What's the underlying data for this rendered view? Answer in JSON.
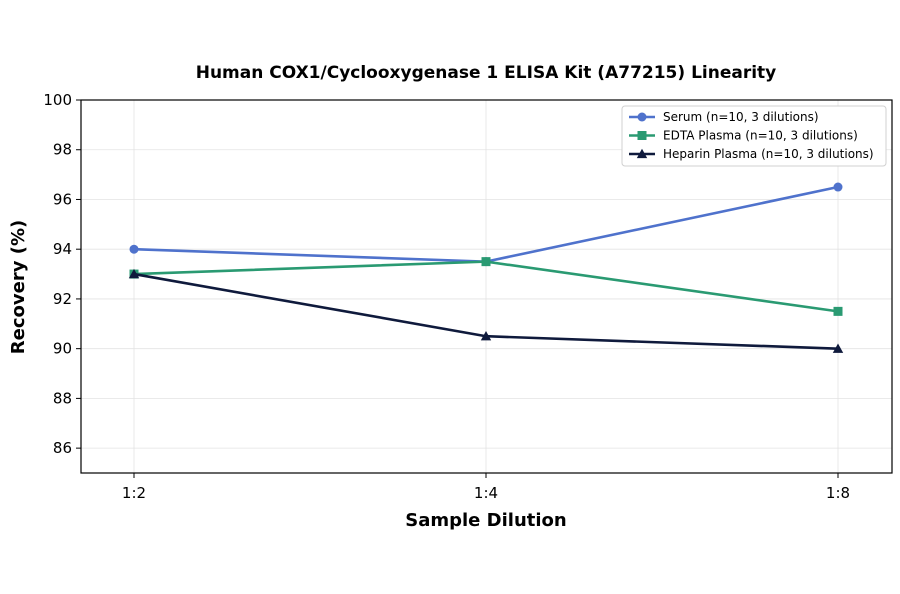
{
  "chart_data": {
    "type": "line",
    "title": "Human COX1/Cyclooxygenase 1 ELISA Kit (A77215) Linearity",
    "xlabel": "Sample Dilution",
    "ylabel": "Recovery (%)",
    "categories": [
      "1:2",
      "1:4",
      "1:8"
    ],
    "ylim": [
      85,
      100
    ],
    "yticks": [
      86,
      88,
      90,
      92,
      94,
      96,
      98,
      100
    ],
    "grid": true,
    "legend_position": "top-right",
    "series": [
      {
        "name": "Serum (n=10, 3 dilutions)",
        "values": [
          94.0,
          93.5,
          96.5
        ],
        "color": "#4f72cc",
        "marker": "circle"
      },
      {
        "name": "EDTA Plasma (n=10, 3 dilutions)",
        "values": [
          93.0,
          93.5,
          91.5
        ],
        "color": "#2a9a72",
        "marker": "square"
      },
      {
        "name": "Heparin Plasma (n=10, 3 dilutions)",
        "values": [
          93.0,
          90.5,
          90.0
        ],
        "color": "#0f1a3c",
        "marker": "triangle"
      }
    ]
  }
}
